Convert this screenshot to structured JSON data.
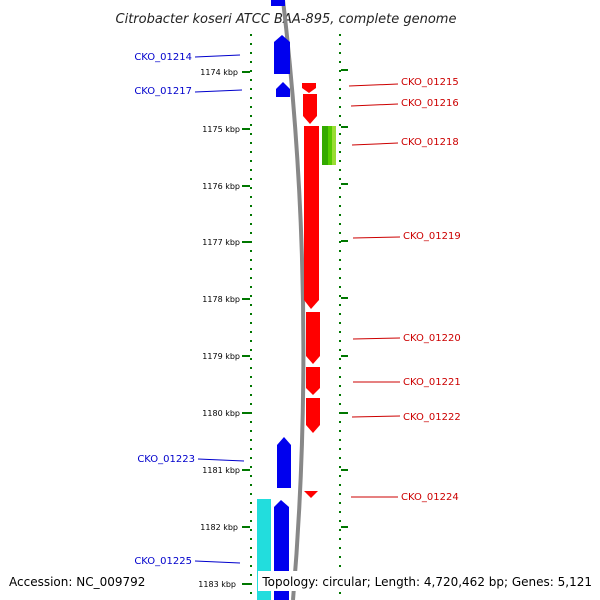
{
  "title": "Citrobacter koseri ATCC BAA-895, complete genome",
  "footer": {
    "accession": "Accession: NC_009792",
    "stats": "Topology: circular; Length: 4,720,462 bp; Genes: 5,121"
  },
  "colors": {
    "forward": "#0000ee",
    "reverse": "#ff0000",
    "highlight_green": "#33aa00",
    "cyan": "#22dddd",
    "backbone": "#888888",
    "ticks": "#007700",
    "label_forward": "#0000cc",
    "label_reverse": "#cc0000"
  },
  "scale": {
    "ticks": [
      {
        "label": "1174 kbp",
        "kbp": 1174
      },
      {
        "label": "1175 kbp",
        "kbp": 1175
      },
      {
        "label": "1176 kbp",
        "kbp": 1176
      },
      {
        "label": "1177 kbp",
        "kbp": 1177
      },
      {
        "label": "1178 kbp",
        "kbp": 1178
      },
      {
        "label": "1179 kbp",
        "kbp": 1179
      },
      {
        "label": "1180 kbp",
        "kbp": 1180
      },
      {
        "label": "1181 kbp",
        "kbp": 1181
      },
      {
        "label": "1182 kbp",
        "kbp": 1182
      },
      {
        "label": "1183 kbp",
        "kbp": 1183
      }
    ]
  },
  "genes": [
    {
      "id": "CKO_01214",
      "strand": "+",
      "side": "left"
    },
    {
      "id": "CKO_01217",
      "strand": "+",
      "side": "left"
    },
    {
      "id": "CKO_01223",
      "strand": "+",
      "side": "left"
    },
    {
      "id": "CKO_01225",
      "strand": "+",
      "side": "left"
    },
    {
      "id": "CKO_01215",
      "strand": "-",
      "side": "right"
    },
    {
      "id": "CKO_01216",
      "strand": "-",
      "side": "right"
    },
    {
      "id": "CKO_01218",
      "strand": "-",
      "side": "right"
    },
    {
      "id": "CKO_01219",
      "strand": "-",
      "side": "right"
    },
    {
      "id": "CKO_01220",
      "strand": "-",
      "side": "right"
    },
    {
      "id": "CKO_01221",
      "strand": "-",
      "side": "right"
    },
    {
      "id": "CKO_01222",
      "strand": "-",
      "side": "right"
    },
    {
      "id": "CKO_01224",
      "strand": "-",
      "side": "right"
    }
  ]
}
